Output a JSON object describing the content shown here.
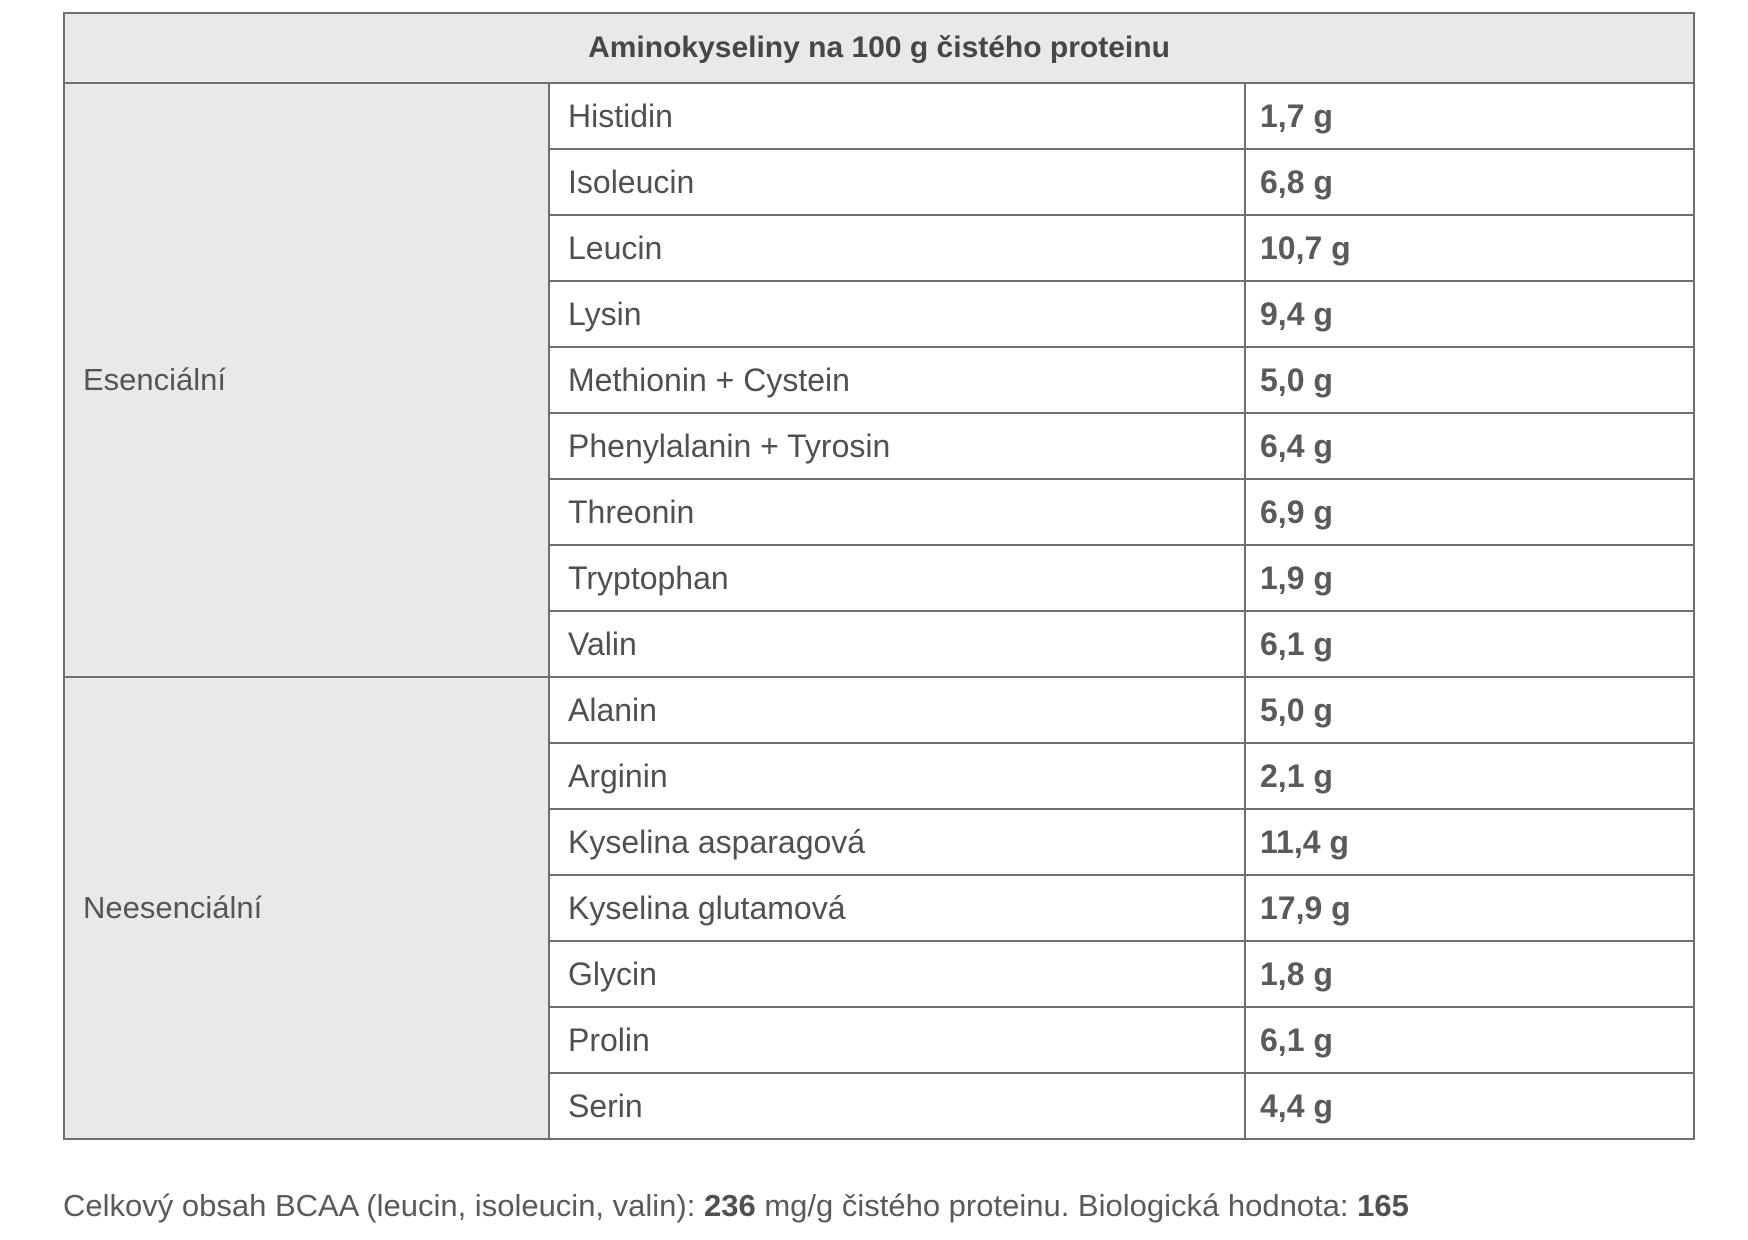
{
  "title": "Aminokyseliny na 100 g čistého proteinu",
  "groups": [
    {
      "label": "Esenciální",
      "rows": [
        {
          "name": "Histidin",
          "value": "1,7 g"
        },
        {
          "name": "Isoleucin",
          "value": "6,8 g"
        },
        {
          "name": "Leucin",
          "value": "10,7 g"
        },
        {
          "name": "Lysin",
          "value": "9,4 g"
        },
        {
          "name": "Methionin + Cystein",
          "value": "5,0 g"
        },
        {
          "name": "Phenylalanin + Tyrosin",
          "value": "6,4 g"
        },
        {
          "name": "Threonin",
          "value": "6,9 g"
        },
        {
          "name": "Tryptophan",
          "value": "1,9 g"
        },
        {
          "name": "Valin",
          "value": "6,1 g"
        }
      ]
    },
    {
      "label": "Neesenciální",
      "rows": [
        {
          "name": "Alanin",
          "value": "5,0 g"
        },
        {
          "name": "Arginin",
          "value": "2,1 g"
        },
        {
          "name": "Kyselina asparagová",
          "value": "11,4 g"
        },
        {
          "name": "Kyselina glutamová",
          "value": "17,9 g"
        },
        {
          "name": "Glycin",
          "value": "1,8 g"
        },
        {
          "name": "Prolin",
          "value": "6,1 g"
        },
        {
          "name": "Serin",
          "value": "4,4 g"
        }
      ]
    }
  ],
  "footer": {
    "bcaa_label": "Celkový obsah BCAA (leucin, isoleucin, valin): ",
    "bcaa_value": "236",
    "bcaa_unit": " mg/g čistého proteinu. Biologická hodnota: ",
    "bio_value": "165"
  }
}
